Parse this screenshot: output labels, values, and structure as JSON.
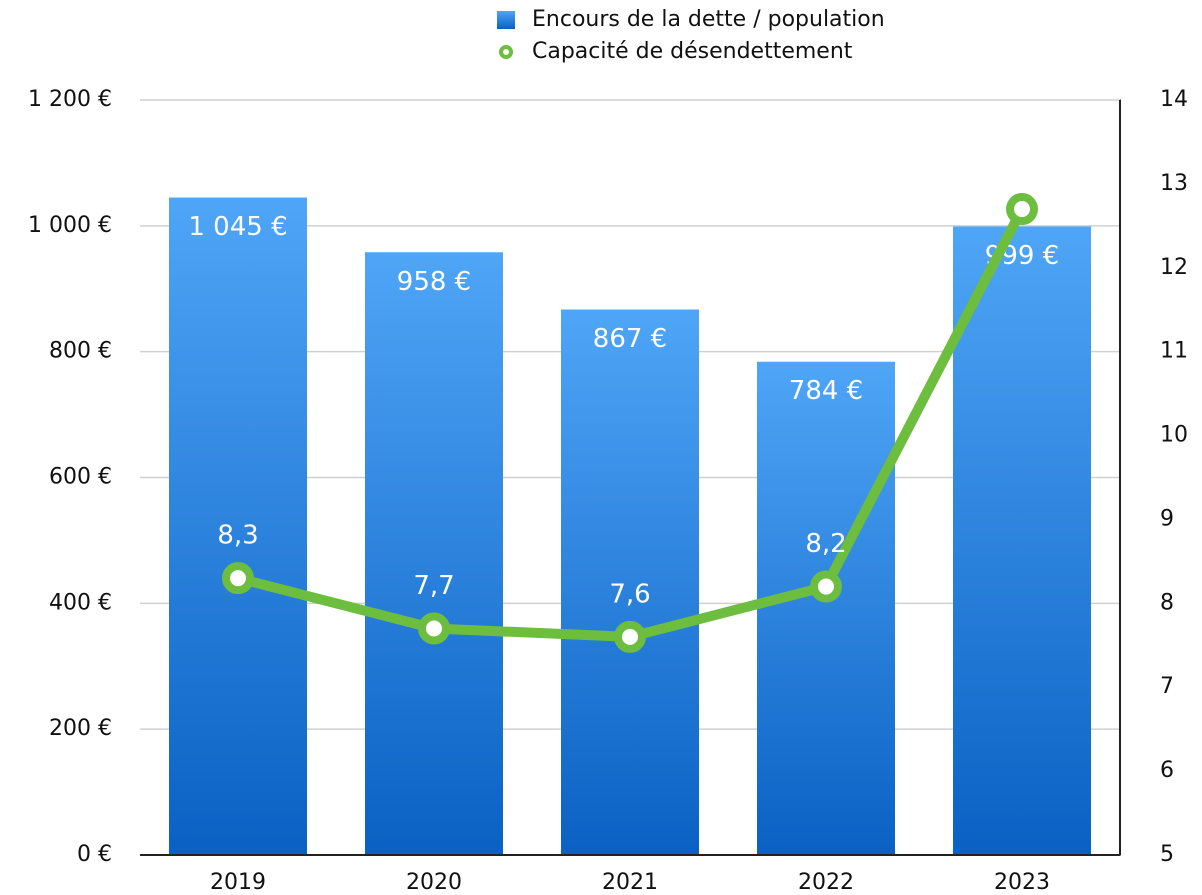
{
  "chart_data": {
    "type": "bar",
    "categories": [
      "2019",
      "2020",
      "2021",
      "2022",
      "2023"
    ],
    "ylim": [
      0,
      1200
    ],
    "yticks": [
      {
        "value": 0,
        "label": "0 €"
      },
      {
        "value": 200,
        "label": "200 €"
      },
      {
        "value": 400,
        "label": "400 €"
      },
      {
        "value": 600,
        "label": "600 €"
      },
      {
        "value": 800,
        "label": "800 €"
      },
      {
        "value": 1000,
        "label": "1 000 €"
      },
      {
        "value": 1200,
        "label": "1 200 €"
      }
    ],
    "y2lim": [
      5,
      14
    ],
    "y2ticks": [
      5,
      6,
      7,
      8,
      9,
      10,
      11,
      12,
      13,
      14
    ],
    "grid": true,
    "legend": "top",
    "series": [
      {
        "name": "Encours de la dette / population",
        "type": "bar",
        "color": "#1f7fdd",
        "values": [
          1045,
          958,
          867,
          784,
          999
        ],
        "value_labels": [
          "1 045 €",
          "958 €",
          "867 €",
          "784 €",
          "999 €"
        ]
      },
      {
        "name": "Capacité de désendettement",
        "type": "line",
        "axis": "y2",
        "color": "#6dbd3f",
        "values": [
          8.3,
          7.7,
          7.6,
          8.2,
          12.7
        ],
        "value_labels": [
          "8,3",
          "7,7",
          "7,6",
          "8,2",
          null
        ]
      }
    ]
  }
}
